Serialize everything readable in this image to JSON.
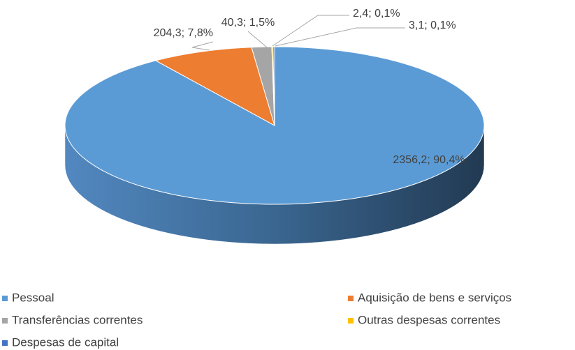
{
  "chart_data": {
    "type": "pie",
    "categories": [
      "Pessoal",
      "Aquisição de bens e serviços",
      "Transferências correntes",
      "Outras despesas correntes",
      "Despesas de capital"
    ],
    "values": [
      2356.2,
      204.3,
      40.3,
      2.4,
      3.1
    ],
    "value_labels": [
      "2356,2; 90,4%",
      "204,3; 7,8%",
      "40,3; 1,5%",
      "2,4; 0,1%",
      "3,1; 0,1%"
    ],
    "colors": [
      "#5b9bd5",
      "#ed7d31",
      "#a5a5a5",
      "#ffc000",
      "#4472c4"
    ],
    "legend": "bottom"
  }
}
